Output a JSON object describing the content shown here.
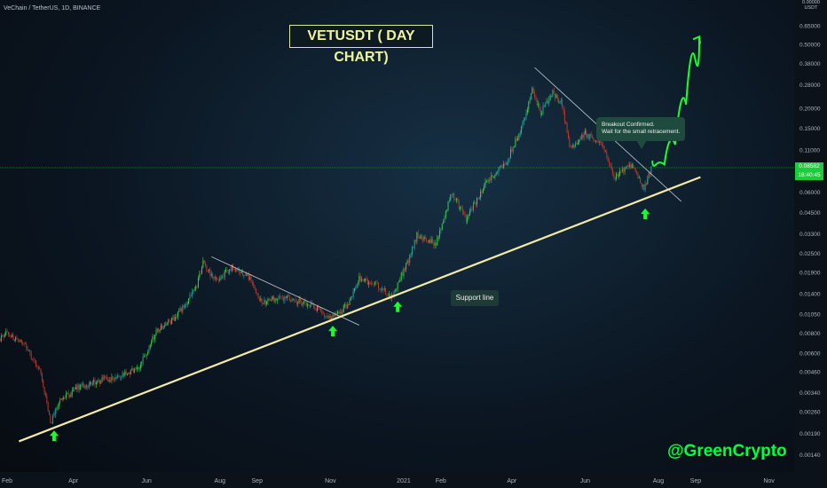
{
  "header": "VeChain / TetherUS, 1D, BINANCE",
  "title": "VETUSDT ( DAY CHART)",
  "callout_line1": "Breakout Confirmed.",
  "callout_line2": "Wait for the small retracement.",
  "support_label": "Support line",
  "brand": "@GreenCrypto",
  "axis_corner_top": "0.00000",
  "axis_corner_unit": "USDT",
  "price_tag_value": "0.08582",
  "price_tag_time": "18:40:45",
  "colors": {
    "up": "#26a69a",
    "up_bright": "#3ad14a",
    "down": "#c0392b",
    "support": "#f3eaa5",
    "arrow": "#17ff2a",
    "projection": "#19ff2c",
    "brand": "#00ff3c"
  },
  "chart_data": {
    "type": "candlestick",
    "title": "VETUSDT ( DAY CHART)",
    "y_scale": "log",
    "ylim": [
      0.0011,
      0.9
    ],
    "y_ticks": [
      {
        "value": 0.65,
        "label": "0.65000"
      },
      {
        "value": 0.5,
        "label": "0.50000"
      },
      {
        "value": 0.38,
        "label": "0.38000"
      },
      {
        "value": 0.28,
        "label": "0.28000"
      },
      {
        "value": 0.2,
        "label": "0.20000"
      },
      {
        "value": 0.15,
        "label": "0.15000"
      },
      {
        "value": 0.11,
        "label": "0.11000"
      },
      {
        "value": 0.08,
        "label": "0.08000"
      },
      {
        "value": 0.06,
        "label": "0.06000"
      },
      {
        "value": 0.045,
        "label": "0.04500"
      },
      {
        "value": 0.033,
        "label": "0.03300"
      },
      {
        "value": 0.025,
        "label": "0.02500"
      },
      {
        "value": 0.019,
        "label": "0.01900"
      },
      {
        "value": 0.014,
        "label": "0.01400"
      },
      {
        "value": 0.0105,
        "label": "0.01050"
      },
      {
        "value": 0.008,
        "label": "0.00800"
      },
      {
        "value": 0.006,
        "label": "0.00600"
      },
      {
        "value": 0.0046,
        "label": "0.00460"
      },
      {
        "value": 0.0034,
        "label": "0.00340"
      },
      {
        "value": 0.0026,
        "label": "0.00260"
      },
      {
        "value": 0.0019,
        "label": "0.00190"
      },
      {
        "value": 0.0014,
        "label": "0.00140"
      },
      {
        "value": 0.00104,
        "label": "0.00104"
      }
    ],
    "x_ticks": [
      {
        "date": "2020-02-01",
        "label": "Feb"
      },
      {
        "date": "2020-04-01",
        "label": "Apr"
      },
      {
        "date": "2020-06-01",
        "label": "Jun"
      },
      {
        "date": "2020-08-01",
        "label": "Aug"
      },
      {
        "date": "2020-09-01",
        "label": "Sep"
      },
      {
        "date": "2020-11-01",
        "label": "Nov"
      },
      {
        "date": "2021-01-01",
        "label": "2021"
      },
      {
        "date": "2021-02-01",
        "label": "Feb"
      },
      {
        "date": "2021-04-01",
        "label": "Apr"
      },
      {
        "date": "2021-06-01",
        "label": "Jun"
      },
      {
        "date": "2021-08-01",
        "label": "Aug"
      },
      {
        "date": "2021-09-01",
        "label": "Sep"
      },
      {
        "date": "2021-11-01",
        "label": "Nov"
      }
    ],
    "price_path": [
      {
        "date": "2020-01-25",
        "close": 0.0065
      },
      {
        "date": "2020-02-05",
        "close": 0.008
      },
      {
        "date": "2020-02-20",
        "close": 0.0068
      },
      {
        "date": "2020-03-05",
        "close": 0.0045
      },
      {
        "date": "2020-03-13",
        "close": 0.0022
      },
      {
        "date": "2020-03-20",
        "close": 0.003
      },
      {
        "date": "2020-04-05",
        "close": 0.0037
      },
      {
        "date": "2020-05-05",
        "close": 0.0043
      },
      {
        "date": "2020-05-25",
        "close": 0.0048
      },
      {
        "date": "2020-06-10",
        "close": 0.0085
      },
      {
        "date": "2020-06-25",
        "close": 0.01
      },
      {
        "date": "2020-07-12",
        "close": 0.015
      },
      {
        "date": "2020-07-18",
        "close": 0.022
      },
      {
        "date": "2020-07-28",
        "close": 0.017
      },
      {
        "date": "2020-08-12",
        "close": 0.021
      },
      {
        "date": "2020-08-25",
        "close": 0.018
      },
      {
        "date": "2020-09-05",
        "close": 0.0125
      },
      {
        "date": "2020-09-25",
        "close": 0.0135
      },
      {
        "date": "2020-10-20",
        "close": 0.0115
      },
      {
        "date": "2020-11-01",
        "close": 0.0098
      },
      {
        "date": "2020-11-15",
        "close": 0.012
      },
      {
        "date": "2020-11-25",
        "close": 0.0175
      },
      {
        "date": "2020-12-10",
        "close": 0.016
      },
      {
        "date": "2020-12-22",
        "close": 0.0135
      },
      {
        "date": "2021-01-05",
        "close": 0.023
      },
      {
        "date": "2021-01-12",
        "close": 0.033
      },
      {
        "date": "2021-01-28",
        "close": 0.029
      },
      {
        "date": "2021-02-10",
        "close": 0.06
      },
      {
        "date": "2021-02-22",
        "close": 0.041
      },
      {
        "date": "2021-03-10",
        "close": 0.068
      },
      {
        "date": "2021-03-28",
        "close": 0.095
      },
      {
        "date": "2021-04-10",
        "close": 0.16
      },
      {
        "date": "2021-04-18",
        "close": 0.26
      },
      {
        "date": "2021-04-25",
        "close": 0.19
      },
      {
        "date": "2021-05-05",
        "close": 0.25
      },
      {
        "date": "2021-05-12",
        "close": 0.22
      },
      {
        "date": "2021-05-20",
        "close": 0.11
      },
      {
        "date": "2021-06-01",
        "close": 0.14
      },
      {
        "date": "2021-06-15",
        "close": 0.12
      },
      {
        "date": "2021-06-25",
        "close": 0.075
      },
      {
        "date": "2021-07-10",
        "close": 0.09
      },
      {
        "date": "2021-07-20",
        "close": 0.062
      },
      {
        "date": "2021-07-26",
        "close": 0.0858
      }
    ],
    "support_line": [
      {
        "date": "2020-02-01",
        "value": 0.00175
      },
      {
        "date": "2021-09-05",
        "value": 0.075
      }
    ],
    "resistance_lines": [
      [
        {
          "date": "2020-07-25",
          "value": 0.024
        },
        {
          "date": "2020-11-25",
          "value": 0.009
        }
      ],
      [
        {
          "date": "2021-04-20",
          "value": 0.36
        },
        {
          "date": "2021-08-20",
          "value": 0.053
        }
      ]
    ],
    "current_price": 0.08582,
    "projection": [
      {
        "date": "2021-07-27",
        "value": 0.095
      },
      {
        "date": "2021-08-02",
        "value": 0.085
      },
      {
        "date": "2021-08-10",
        "value": 0.095
      },
      {
        "date": "2021-08-20",
        "value": 0.15
      },
      {
        "date": "2021-08-28",
        "value": 0.3
      },
      {
        "date": "2021-09-04",
        "value": 0.56
      }
    ],
    "support_arrows": [
      "2020-03-16",
      "2020-11-03",
      "2020-12-27",
      "2021-07-21"
    ]
  }
}
